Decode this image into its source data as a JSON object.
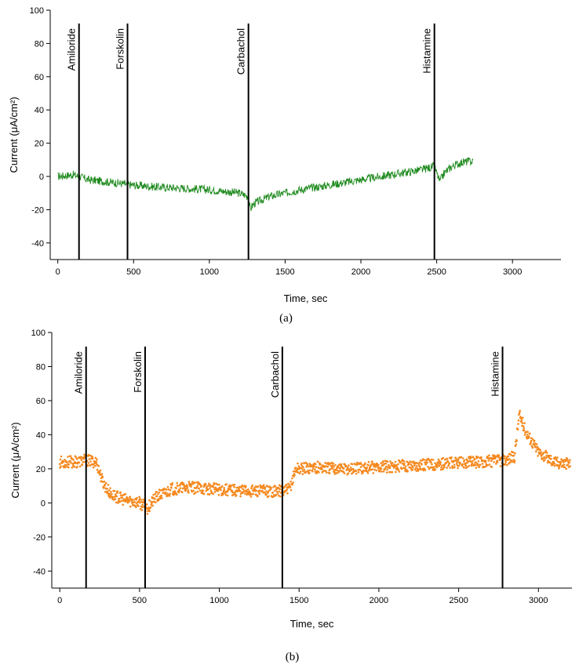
{
  "chart_data": [
    {
      "type": "line",
      "panel_label": "(a)",
      "xlabel": "Time, sec",
      "ylabel": "Current (μA/cm²)",
      "xlim": [
        -50,
        3320
      ],
      "ylim": [
        -50,
        100
      ],
      "xticks": [
        0,
        500,
        1000,
        1500,
        2000,
        2500,
        3000
      ],
      "yticks": [
        -40,
        -20,
        0,
        20,
        40,
        60,
        80,
        100
      ],
      "color": "#1e8a1e",
      "series": [
        {
          "x": [
            0,
            100,
            140,
            200,
            300,
            400,
            470,
            600,
            800,
            1000,
            1200,
            1255,
            1270,
            1280,
            1300,
            1350,
            1400,
            1500,
            1600,
            1800,
            2000,
            2200,
            2400,
            2485,
            2500,
            2520,
            2550,
            2600,
            2650,
            2700,
            2740
          ],
          "y": [
            0,
            1,
            0,
            -2,
            -3,
            -4,
            -5,
            -6,
            -7,
            -8,
            -10,
            -12,
            -20,
            -18,
            -16,
            -14,
            -12,
            -10,
            -8,
            -5,
            -2,
            1,
            4,
            6,
            2,
            -3,
            2,
            6,
            8,
            9,
            9
          ]
        }
      ],
      "annotations": [
        {
          "label": "Amiloride",
          "x": 140
        },
        {
          "label": "Forskolin",
          "x": 460
        },
        {
          "label": "Carbachol",
          "x": 1258
        },
        {
          "label": "Histamine",
          "x": 2485
        }
      ]
    },
    {
      "type": "scatter",
      "panel_label": "(b)",
      "xlabel": "Time, sec",
      "ylabel": "Current (μA/cm²)",
      "xlim": [
        -50,
        3210
      ],
      "ylim": [
        -50,
        100
      ],
      "xticks": [
        0,
        500,
        1000,
        1500,
        2000,
        2500,
        3000
      ],
      "yticks": [
        -40,
        -20,
        0,
        20,
        40,
        60,
        80,
        100
      ],
      "color": "#f5891f",
      "series": [
        {
          "x": [
            0,
            100,
            160,
            230,
            270,
            320,
            400,
            500,
            550,
            600,
            700,
            800,
            1000,
            1200,
            1390,
            1440,
            1480,
            1600,
            1800,
            2000,
            2200,
            2400,
            2600,
            2780,
            2850,
            2880,
            2920,
            3000,
            3100,
            3200
          ],
          "y": [
            24,
            24,
            25,
            24,
            12,
            5,
            2,
            0,
            -3,
            3,
            8,
            9,
            8,
            7,
            7,
            8,
            20,
            21,
            20,
            21,
            22,
            23,
            24,
            25,
            27,
            52,
            42,
            30,
            24,
            23
          ]
        }
      ],
      "annotations": [
        {
          "label": "Amiloride",
          "x": 165
        },
        {
          "label": "Forskolin",
          "x": 535
        },
        {
          "label": "Carbachol",
          "x": 1395
        },
        {
          "label": "Histamine",
          "x": 2775
        }
      ]
    }
  ]
}
